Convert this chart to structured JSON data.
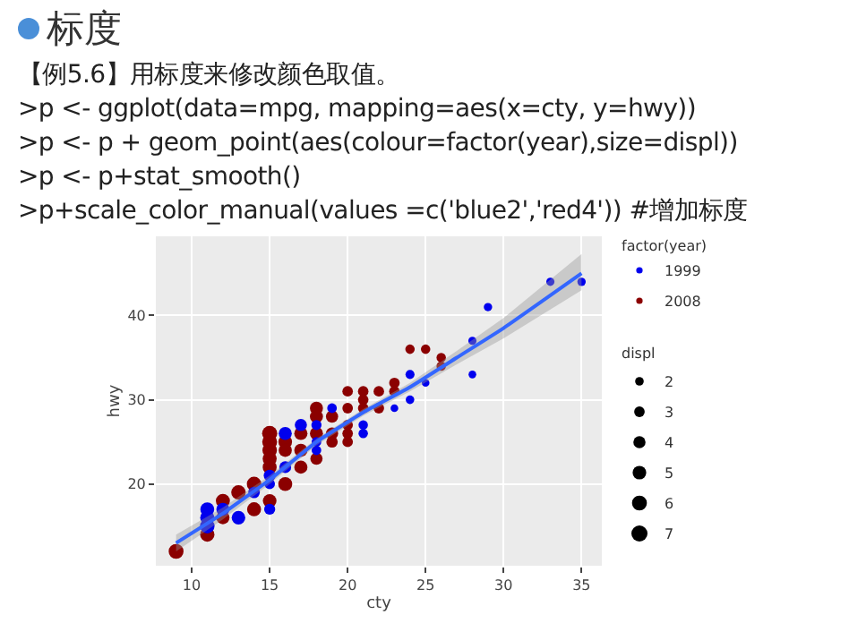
{
  "chart_data": {
    "type": "bubble",
    "title": "标度",
    "annotations": [
      "【例5.6】用标度来修改颜色取值。",
      ">p <- ggplot(data=mpg, mapping=aes(x=cty, y=hwy))",
      ">p <- p + geom_point(aes(colour=factor(year),size=displ))",
      ">p <- p+stat_smooth()",
      ">p+scale_color_manual(values =c('blue2','red4'))  #增加标度",
      "displ"
    ],
    "xlabel": "cty",
    "ylabel": "hwy",
    "legend_title": "factor(year)",
    "series": [
      {
        "name": "1999",
        "color": "#0000ee",
        "x": [
          33,
          35,
          29,
          28,
          28,
          24,
          25,
          24,
          23,
          21,
          21,
          19,
          18,
          18,
          18,
          17,
          16,
          16,
          15,
          15,
          15,
          14,
          13,
          12,
          11,
          11,
          11
        ],
        "values": [
          44,
          44,
          41,
          37,
          33,
          33,
          32,
          30,
          29,
          27,
          26,
          29,
          27,
          25,
          24,
          27,
          26,
          22,
          21,
          20,
          17,
          19,
          16,
          17,
          17,
          16,
          15
        ],
        "sizes": [
          1.8,
          1.9,
          1.9,
          1.8,
          1.6,
          2.2,
          1.6,
          2,
          1.6,
          2.4,
          2.4,
          2.5,
          2.8,
          2.5,
          2.5,
          4,
          4.6,
          3.8,
          3.8,
          3,
          3.3,
          3.6,
          5,
          4.6,
          5.2,
          5.4,
          5.7
        ]
      },
      {
        "name": "2008",
        "color": "#8b0000",
        "x": [
          9,
          11,
          12,
          12,
          13,
          14,
          14,
          15,
          15,
          15,
          15,
          15,
          15,
          16,
          16,
          16,
          17,
          17,
          17,
          18,
          18,
          18,
          18,
          19,
          19,
          19,
          20,
          20,
          20,
          20,
          20,
          21,
          21,
          21,
          22,
          22,
          23,
          23,
          24,
          25,
          26,
          26
        ],
        "values": [
          12,
          14,
          18,
          16,
          19,
          20,
          17,
          18,
          26,
          25,
          24,
          23,
          22,
          20,
          25,
          24,
          26,
          24,
          22,
          29,
          28,
          26,
          23,
          28,
          26,
          25,
          31,
          29,
          27,
          26,
          25,
          31,
          30,
          29,
          31,
          29,
          32,
          31,
          36,
          36,
          35,
          34
        ],
        "sizes": [
          6,
          5.5,
          5.3,
          4.7,
          5.7,
          5.7,
          5.3,
          5,
          6.2,
          6,
          5.7,
          5.3,
          5.3,
          5.3,
          5,
          4.7,
          4.7,
          4.7,
          4.7,
          4.6,
          4.6,
          4.6,
          4,
          4,
          4,
          3.5,
          3,
          3,
          3,
          3,
          3,
          3,
          3,
          3,
          3,
          3,
          3,
          3,
          2.4,
          2.4,
          2.4,
          2.4
        ]
      },
      {
        "type": "line",
        "marker": "none",
        "color": "#3366ff",
        "x": [
          9,
          12,
          15,
          18,
          21,
          24,
          27,
          30,
          35
        ],
        "values": [
          13,
          16.5,
          20.5,
          25,
          28.5,
          31.5,
          35,
          38.5,
          45
        ],
        "lower": [
          12,
          15.8,
          20,
          24.6,
          28.1,
          31,
          34.2,
          37.3,
          43
        ],
        "upper": [
          14,
          17.2,
          21,
          25.4,
          28.9,
          32,
          35.8,
          39.7,
          47.3
        ]
      }
    ],
    "size_legend": [
      2,
      3,
      4,
      5,
      6,
      7
    ],
    "xlim": [
      7.7,
      36.3
    ],
    "xticks": [
      10,
      15,
      20,
      25,
      30,
      35
    ],
    "ylim": [
      10.3,
      49.4
    ],
    "yticks": [
      20,
      30,
      40
    ],
    "grid": true,
    "legend": "right",
    "marker": "circle"
  }
}
